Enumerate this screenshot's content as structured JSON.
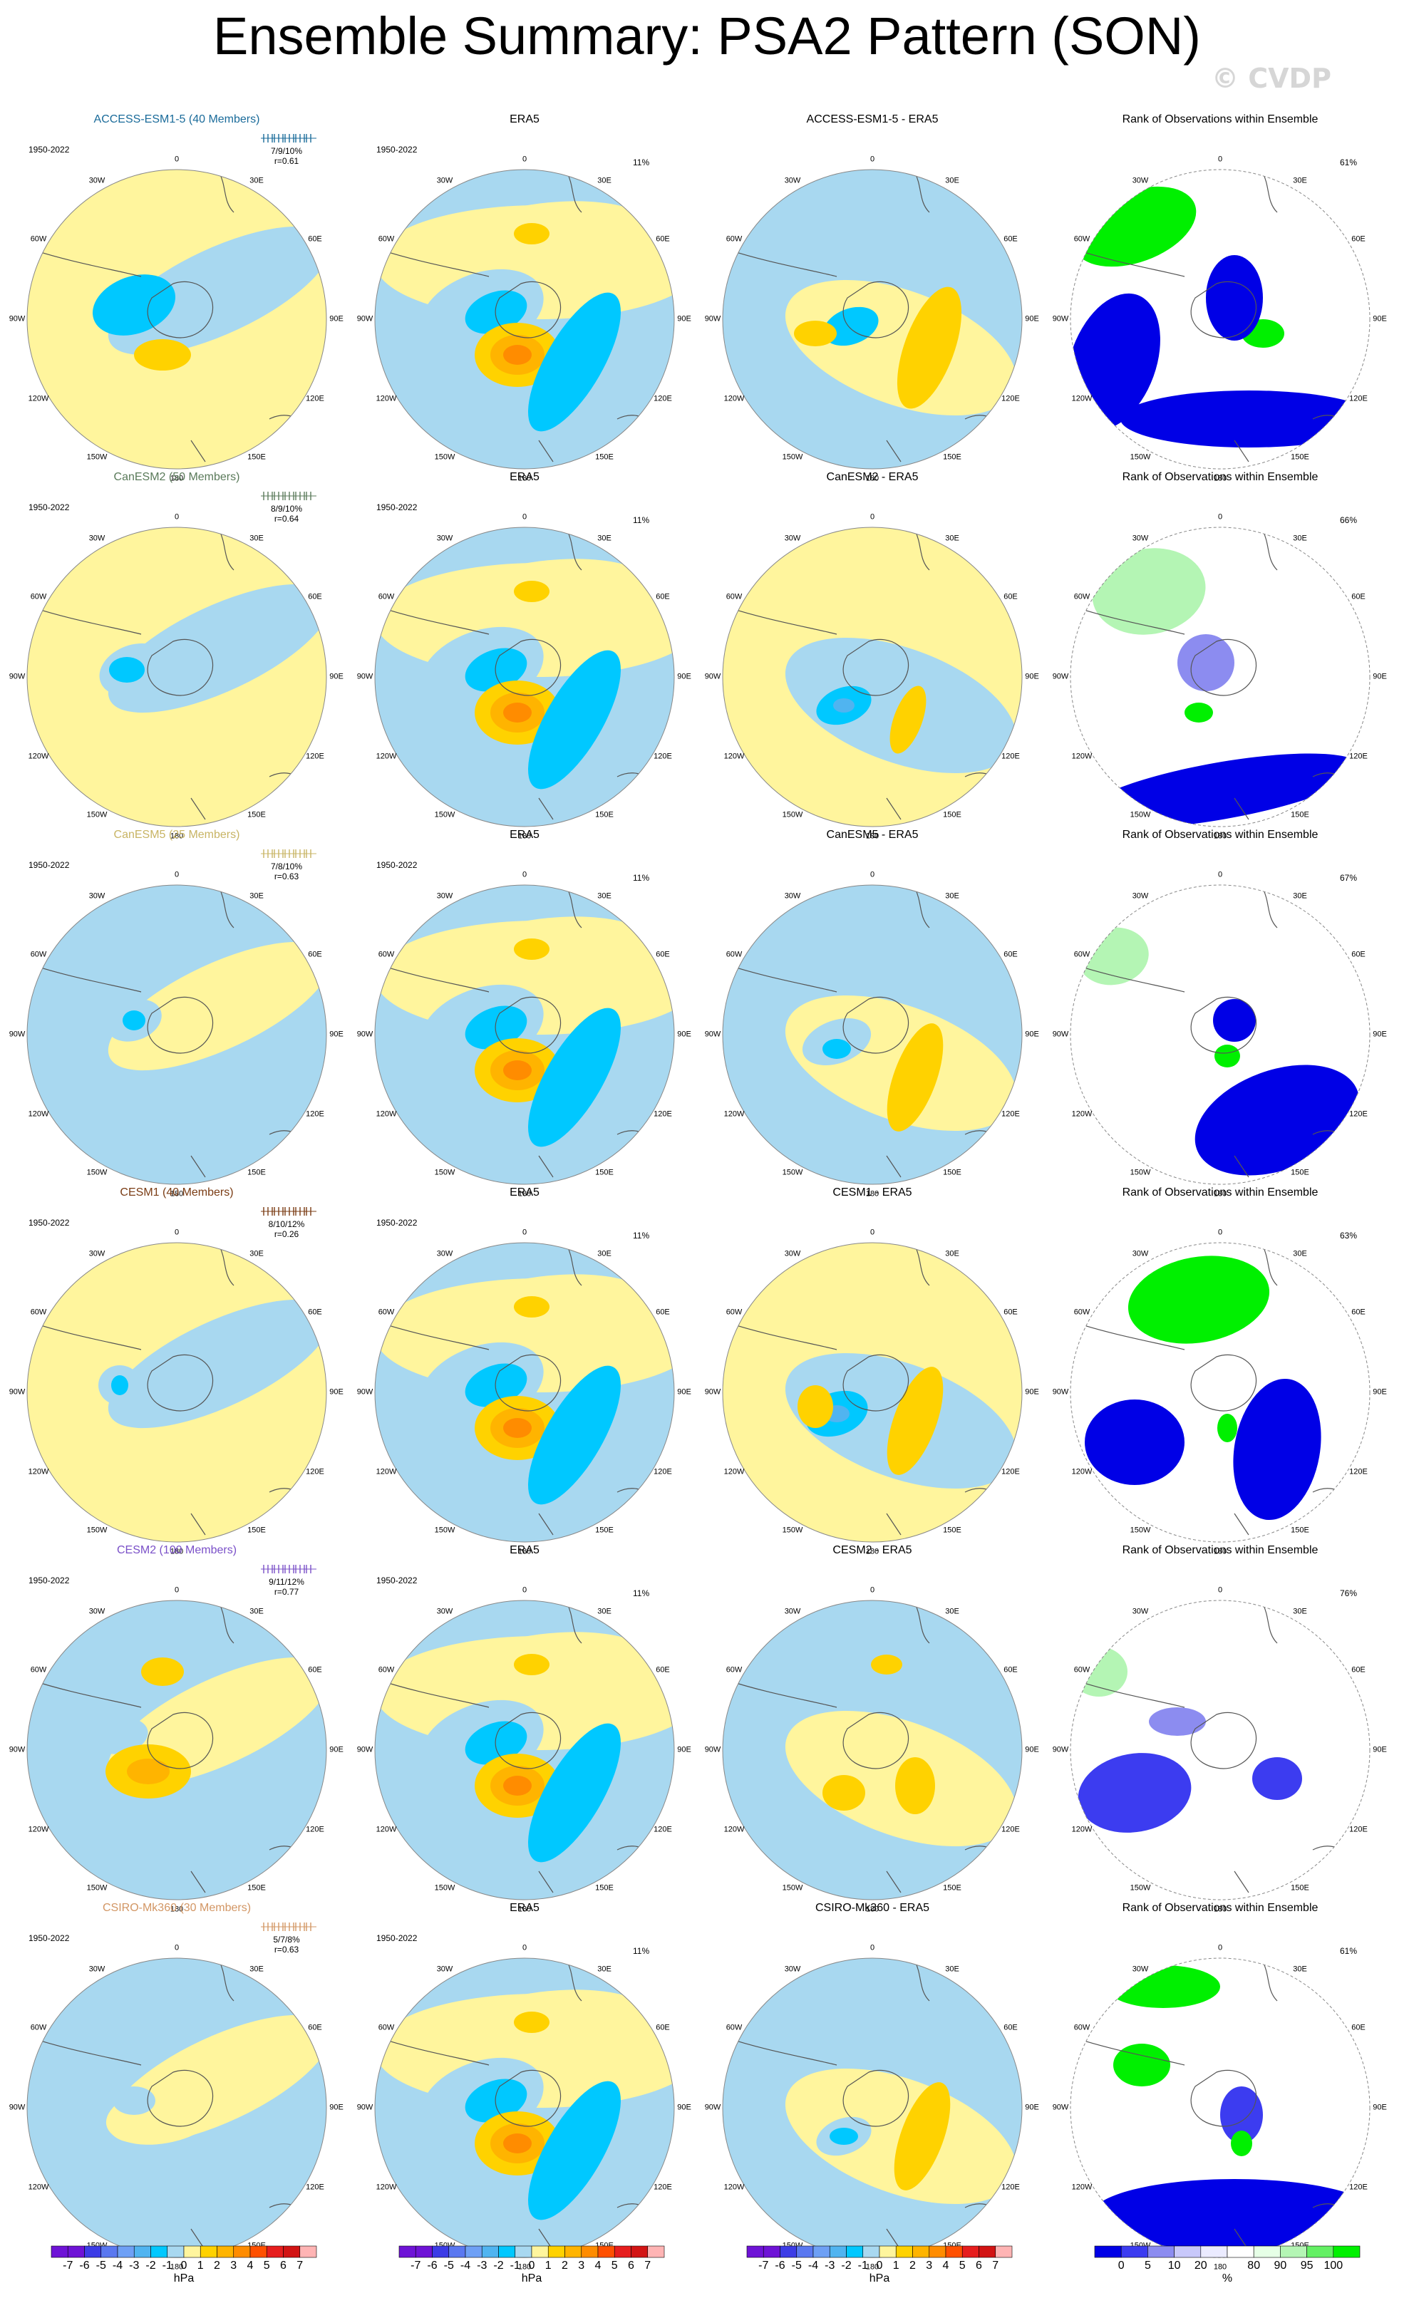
{
  "title": "Ensemble Summary: PSA2 Pattern (SON)",
  "watermark": "© CVDP",
  "lon_labels": [
    "0",
    "30E",
    "60E",
    "90E",
    "120E",
    "150E",
    "180",
    "150W",
    "120W",
    "90W",
    "60W",
    "30W"
  ],
  "colors": {
    "anom_levels": [
      "#6e13d6",
      "#3c3ce6",
      "#5a78f0",
      "#6ea0f5",
      "#50b4f0",
      "#00c8ff",
      "#a8d8f0",
      "#fff59d",
      "#ffd200",
      "#ffb400",
      "#ff8c00",
      "#ff5000",
      "#e61e1e",
      "#d21414",
      "#ffb4b4"
    ],
    "rank_levels": [
      "#0000e6",
      "#3c3cf0",
      "#8c8cf0",
      "#c8c8fa",
      "#ebebff",
      "#ffffff",
      "#e6ffe6",
      "#b4f5b4",
      "#64f064",
      "#00f000"
    ],
    "land_outline": "#555555",
    "disk_edge": "#888888"
  },
  "colorbars": {
    "anomaly": {
      "ticks": [
        "-7",
        "-6",
        "-5",
        "-4",
        "-3",
        "-2",
        "-1",
        "0",
        "1",
        "2",
        "3",
        "4",
        "5",
        "6",
        "7"
      ],
      "unit": "hPa"
    },
    "rank": {
      "ticks": [
        "0",
        "5",
        "10",
        "20",
        "80",
        "90",
        "95",
        "100"
      ],
      "unit": "%"
    }
  },
  "chart_data": {
    "type": "polar-map-panels",
    "rows": [
      {
        "model": "ACCESS-ESM1-5 (40 Members)",
        "model_color": "#1a6b9a",
        "period": "1950-2022",
        "spread": "7/9/10%",
        "corr": "r=0.61",
        "obs_title": "ERA5",
        "obs_period": "1950-2022",
        "obs_pct": "11%",
        "diff_title": "ACCESS-ESM1-5 - ERA5",
        "rank_title": "Rank of Observations within Ensemble",
        "rank_pct": "61%",
        "model_bg": "#fff59d",
        "model_blobs": [],
        "diff_bg": "#a8d8f0",
        "diff_blobs": [],
        "rank_blobs": []
      },
      {
        "model": "CanESM2 (50 Members)",
        "model_color": "#5a7a5a",
        "period": "1950-2022",
        "spread": "8/9/10%",
        "corr": "r=0.64",
        "obs_title": "ERA5",
        "obs_period": "1950-2022",
        "obs_pct": "11%",
        "diff_title": "CanESM2 - ERA5",
        "rank_title": "Rank of Observations within Ensemble",
        "rank_pct": "66%",
        "model_bg": "#fff59d",
        "diff_bg": "#fff59d"
      },
      {
        "model": "CanESM5 (25 Members)",
        "model_color": "#c8b464",
        "period": "1950-2022",
        "spread": "7/8/10%",
        "corr": "r=0.63",
        "obs_title": "ERA5",
        "obs_period": "1950-2022",
        "obs_pct": "11%",
        "diff_title": "CanESM5 - ERA5",
        "rank_title": "Rank of Observations within Ensemble",
        "rank_pct": "67%",
        "model_bg": "#a8d8f0",
        "diff_bg": "#a8d8f0"
      },
      {
        "model": "CESM1 (40 Members)",
        "model_color": "#7a3c14",
        "period": "1950-2022",
        "spread": "8/10/12%",
        "corr": "r=0.26",
        "obs_title": "ERA5",
        "obs_period": "1950-2022",
        "obs_pct": "11%",
        "diff_title": "CESM1 - ERA5",
        "rank_title": "Rank of Observations within Ensemble",
        "rank_pct": "63%",
        "model_bg": "#fff59d",
        "diff_bg": "#fff59d"
      },
      {
        "model": "CESM2 (100 Members)",
        "model_color": "#7a50c8",
        "period": "1950-2022",
        "spread": "9/11/12%",
        "corr": "r=0.77",
        "obs_title": "ERA5",
        "obs_period": "1950-2022",
        "obs_pct": "11%",
        "diff_title": "CESM2 - ERA5",
        "rank_title": "Rank of Observations within Ensemble",
        "rank_pct": "76%",
        "model_bg": "#a8d8f0",
        "diff_bg": "#a8d8f0"
      },
      {
        "model": "CSIRO-Mk360 (30 Members)",
        "model_color": "#d29664",
        "period": "1950-2022",
        "spread": "5/7/8%",
        "corr": "r=0.63",
        "obs_title": "ERA5",
        "obs_period": "1950-2022",
        "obs_pct": "11%",
        "diff_title": "CSIRO-Mk360 - ERA5",
        "rank_title": "Rank of Observations within Ensemble",
        "rank_pct": "61%",
        "model_bg": "#a8d8f0",
        "diff_bg": "#a8d8f0"
      }
    ]
  }
}
